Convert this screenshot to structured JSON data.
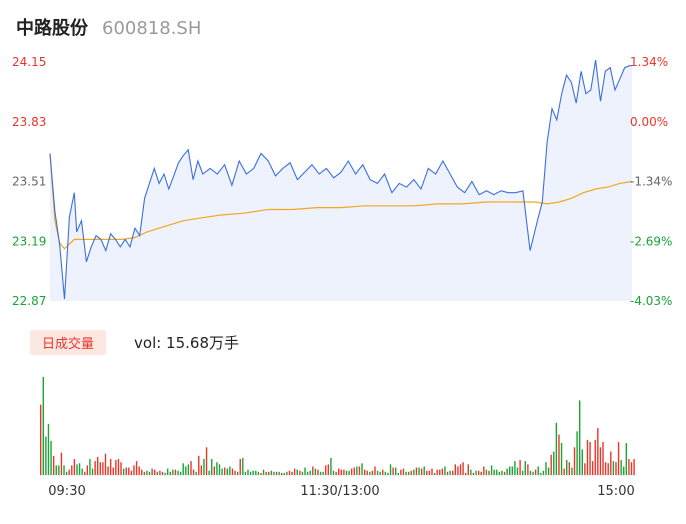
{
  "header": {
    "name": "中路股份",
    "code": "600818.SH"
  },
  "volume": {
    "badge": "日成交量",
    "text": "vol: 15.68万手"
  },
  "colors": {
    "up": "#e8362a",
    "down": "#1aa337",
    "price_line": "#3b6fe0",
    "avg_line": "#f0a820",
    "fill": "#eef2fc"
  },
  "chart_data": [
    {
      "type": "line",
      "title": "",
      "prev_close": 23.83,
      "ylim": [
        22.87,
        24.15
      ],
      "y_ticks": [
        "24.15",
        "23.83",
        "23.51",
        "23.19",
        "22.87"
      ],
      "pct_ticks": [
        "1.34%",
        "0.00%",
        "-1.34%",
        "-2.69%",
        "-4.03%"
      ],
      "x_tick_labels": [
        "09:30",
        "11:30/13:00",
        "15:00"
      ],
      "x_range": [
        0,
        240
      ],
      "series": [
        {
          "name": "price",
          "x": [
            0,
            2,
            4,
            6,
            8,
            10,
            11,
            13,
            15,
            17,
            19,
            21,
            23,
            25,
            27,
            29,
            31,
            33,
            35,
            37,
            39,
            41,
            43,
            45,
            47,
            49,
            51,
            53,
            55,
            57,
            59,
            61,
            63,
            66,
            69,
            72,
            75,
            78,
            81,
            84,
            87,
            90,
            93,
            96,
            99,
            102,
            105,
            108,
            111,
            114,
            117,
            120,
            123,
            126,
            129,
            132,
            135,
            138,
            141,
            144,
            147,
            150,
            153,
            156,
            159,
            162,
            165,
            168,
            171,
            174,
            177,
            180,
            183,
            186,
            189,
            192,
            195,
            198,
            201,
            203,
            205,
            207,
            209,
            211,
            213,
            215,
            217,
            219,
            221,
            223,
            225,
            227,
            229,
            231,
            233,
            235,
            237,
            239,
            240
          ],
          "y": [
            23.66,
            23.35,
            23.17,
            22.88,
            23.32,
            23.45,
            23.24,
            23.3,
            23.08,
            23.16,
            23.22,
            23.2,
            23.14,
            23.23,
            23.2,
            23.16,
            23.2,
            23.16,
            23.26,
            23.22,
            23.42,
            23.5,
            23.58,
            23.5,
            23.55,
            23.47,
            23.54,
            23.61,
            23.65,
            23.68,
            23.52,
            23.62,
            23.55,
            23.58,
            23.55,
            23.6,
            23.49,
            23.62,
            23.55,
            23.58,
            23.66,
            23.62,
            23.54,
            23.58,
            23.61,
            23.52,
            23.56,
            23.6,
            23.55,
            23.58,
            23.53,
            23.56,
            23.62,
            23.55,
            23.6,
            23.52,
            23.5,
            23.55,
            23.45,
            23.5,
            23.48,
            23.52,
            23.47,
            23.58,
            23.55,
            23.62,
            23.55,
            23.48,
            23.45,
            23.51,
            23.44,
            23.46,
            23.44,
            23.46,
            23.45,
            23.45,
            23.46,
            23.14,
            23.3,
            23.4,
            23.72,
            23.9,
            23.84,
            23.98,
            24.08,
            24.04,
            23.93,
            24.1,
            23.98,
            24.0,
            24.16,
            23.94,
            24.1,
            24.12,
            24.0,
            24.06,
            24.12,
            24.13,
            24.13
          ]
        },
        {
          "name": "average",
          "x": [
            0,
            2,
            4,
            6,
            10,
            15,
            20,
            25,
            30,
            35,
            40,
            45,
            50,
            55,
            60,
            70,
            80,
            90,
            100,
            110,
            120,
            130,
            140,
            150,
            160,
            170,
            180,
            190,
            200,
            205,
            210,
            215,
            220,
            225,
            230,
            235,
            240
          ],
          "y": [
            23.66,
            23.3,
            23.18,
            23.15,
            23.2,
            23.2,
            23.2,
            23.2,
            23.2,
            23.21,
            23.24,
            23.26,
            23.28,
            23.3,
            23.31,
            23.33,
            23.34,
            23.36,
            23.36,
            23.37,
            23.37,
            23.38,
            23.38,
            23.38,
            23.39,
            23.39,
            23.4,
            23.4,
            23.4,
            23.39,
            23.4,
            23.42,
            23.45,
            23.47,
            23.48,
            23.5,
            23.51
          ]
        }
      ]
    },
    {
      "type": "bar",
      "title": "",
      "xlim": [
        0,
        240
      ],
      "ylabel": "",
      "values": [
        66,
        92,
        36,
        48,
        32,
        18,
        9,
        9,
        21,
        9,
        3,
        5,
        9,
        15,
        10,
        11,
        6,
        3,
        9,
        15,
        6,
        13,
        17,
        12,
        12,
        20,
        8,
        15,
        7,
        14,
        15,
        12,
        6,
        7,
        7,
        4,
        9,
        13,
        8,
        5,
        3,
        4,
        3,
        6,
        5,
        3,
        4,
        3,
        2,
        6,
        3,
        5,
        5,
        4,
        3,
        11,
        8,
        10,
        13,
        5,
        3,
        18,
        9,
        15,
        26,
        4,
        15,
        8,
        12,
        10,
        6,
        7,
        6,
        8,
        6,
        4,
        3,
        15,
        16,
        3,
        5,
        3,
        4,
        4,
        3,
        2,
        5,
        3,
        3,
        4,
        3,
        3,
        3,
        2,
        2,
        3,
        4,
        3,
        6,
        5,
        4,
        3,
        7,
        3,
        4,
        8,
        6,
        5,
        3,
        3,
        9,
        10,
        16,
        4,
        3,
        6,
        5,
        5,
        4,
        4,
        6,
        7,
        8,
        8,
        11,
        5,
        4,
        3,
        4,
        8,
        4,
        3,
        5,
        3,
        2,
        10,
        7,
        7,
        2,
        5,
        6,
        3,
        3,
        4,
        5,
        7,
        7,
        6,
        8,
        4,
        4,
        6,
        2,
        5,
        5,
        6,
        8,
        3,
        4,
        4,
        10,
        8,
        10,
        12,
        2,
        10,
        5,
        2,
        4,
        4,
        3,
        8,
        5,
        4,
        9,
        5,
        5,
        3,
        4,
        3,
        6,
        8,
        8,
        13,
        7,
        14,
        4,
        13,
        10,
        4,
        3,
        5,
        8,
        2,
        4,
        12,
        7,
        19,
        22,
        49,
        38,
        30,
        6,
        14,
        12,
        7,
        26,
        41,
        70,
        24,
        11,
        33,
        31,
        13,
        33,
        44,
        26,
        31,
        12,
        11,
        22,
        13,
        12,
        31,
        14,
        8,
        30,
        15,
        12,
        15
      ],
      "colors": [
        "up",
        "down",
        "down",
        "down",
        "down",
        "up",
        "down",
        "down",
        "up",
        "down",
        "down",
        "up",
        "up",
        "up",
        "down",
        "down",
        "down",
        "up",
        "up",
        "down",
        "down",
        "up",
        "up",
        "up",
        "up",
        "up",
        "up",
        "up",
        "up",
        "up",
        "up",
        "up",
        "down",
        "up",
        "up",
        "up",
        "up",
        "up",
        "up",
        "up",
        "up",
        "down",
        "down",
        "up",
        "up",
        "down",
        "up",
        "up",
        "down",
        "down",
        "down",
        "down",
        "up",
        "down",
        "down",
        "down",
        "down",
        "down",
        "up",
        "up",
        "down",
        "up",
        "up",
        "down",
        "up",
        "down",
        "down",
        "up",
        "down",
        "down",
        "down",
        "up",
        "down",
        "down",
        "up",
        "up",
        "down",
        "up",
        "down",
        "down",
        "down",
        "down",
        "down",
        "down",
        "down",
        "up",
        "down",
        "up",
        "up",
        "down",
        "down",
        "up",
        "down",
        "down",
        "up",
        "down",
        "up",
        "up",
        "up",
        "down",
        "up",
        "down",
        "down",
        "down",
        "down",
        "up",
        "down",
        "up",
        "down",
        "down",
        "up",
        "up",
        "down",
        "down",
        "up",
        "up",
        "up",
        "up",
        "down",
        "down",
        "up",
        "up",
        "down",
        "up",
        "down",
        "up",
        "up",
        "down",
        "up",
        "up",
        "down",
        "down",
        "up",
        "down",
        "down",
        "down",
        "up",
        "down",
        "down",
        "up",
        "up",
        "down",
        "down",
        "up",
        "down",
        "up",
        "down",
        "up",
        "down",
        "up",
        "up",
        "up",
        "down",
        "up",
        "up",
        "up",
        "down",
        "up",
        "down",
        "up",
        "up",
        "up",
        "up",
        "up",
        "up",
        "up",
        "down",
        "up",
        "down",
        "up",
        "up",
        "up",
        "down",
        "up",
        "down",
        "down",
        "down",
        "down",
        "down",
        "up",
        "down",
        "down",
        "down",
        "down",
        "down",
        "up",
        "down",
        "down",
        "up",
        "down",
        "down",
        "up",
        "down",
        "down",
        "down",
        "down",
        "down",
        "up",
        "down",
        "down",
        "up",
        "down",
        "up",
        "down",
        "up",
        "down",
        "up",
        "down",
        "down",
        "down",
        "up",
        "up",
        "up",
        "up",
        "up",
        "up",
        "up",
        "up",
        "up",
        "up",
        "up",
        "down",
        "up",
        "up",
        "down",
        "down",
        "down",
        "up",
        "up",
        "up",
        "up",
        "up",
        "up",
        "down",
        "up",
        "up",
        "up"
      ]
    }
  ]
}
